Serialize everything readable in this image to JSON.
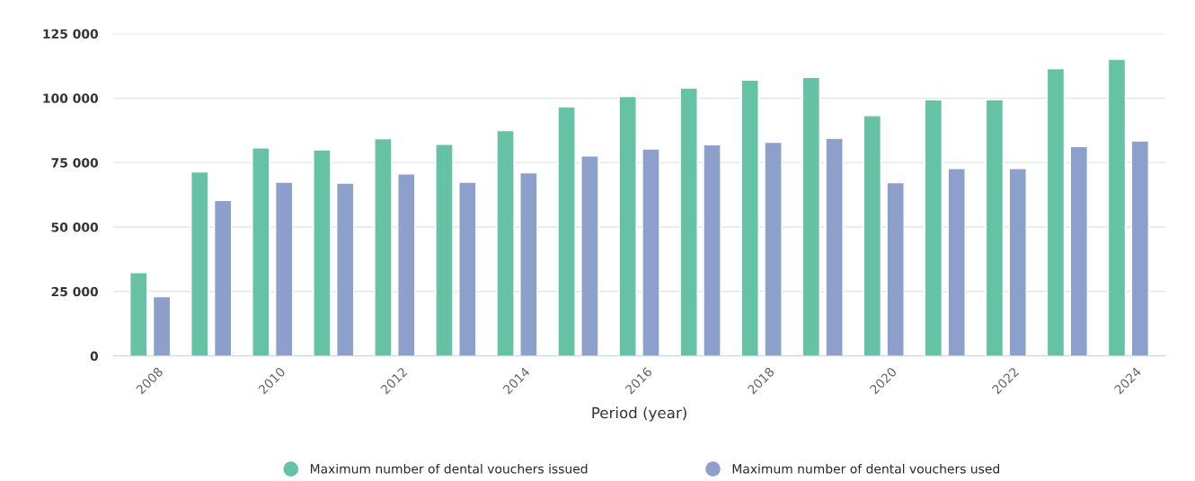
{
  "chart_data": {
    "type": "bar",
    "xlabel": "Period (year)",
    "categories": [
      "2008",
      null,
      "2010",
      null,
      "2012",
      null,
      "2014",
      null,
      "2016",
      null,
      "2018",
      null,
      "2020",
      null,
      "2022",
      null,
      "2024"
    ],
    "series": [
      {
        "name": "Maximum number of dental vouchers issued",
        "color": "#66c2a5",
        "values": [
          32300,
          71400,
          80700,
          79900,
          84300,
          82100,
          87400,
          96600,
          100600,
          103900,
          107000,
          108000,
          93200,
          99400,
          99400,
          111400,
          115100
        ]
      },
      {
        "name": "Maximum number of dental vouchers used",
        "color": "#8da0cb",
        "values": [
          23000,
          60300,
          67400,
          67000,
          70600,
          67400,
          71000,
          77600,
          80300,
          81900,
          82900,
          84400,
          67200,
          72700,
          72700,
          81200,
          83400
        ]
      }
    ],
    "ylim": [
      0,
      125000
    ],
    "yticks": [
      0,
      {
        "value": 25000,
        "label": "25 000"
      },
      {
        "value": 50000,
        "label": "50 000"
      },
      {
        "value": 75000,
        "label": "75 000"
      },
      {
        "value": 100000,
        "label": "100 000"
      },
      {
        "value": 125000,
        "label": "125 000"
      }
    ],
    "grid": "y",
    "legend": "bottom"
  }
}
